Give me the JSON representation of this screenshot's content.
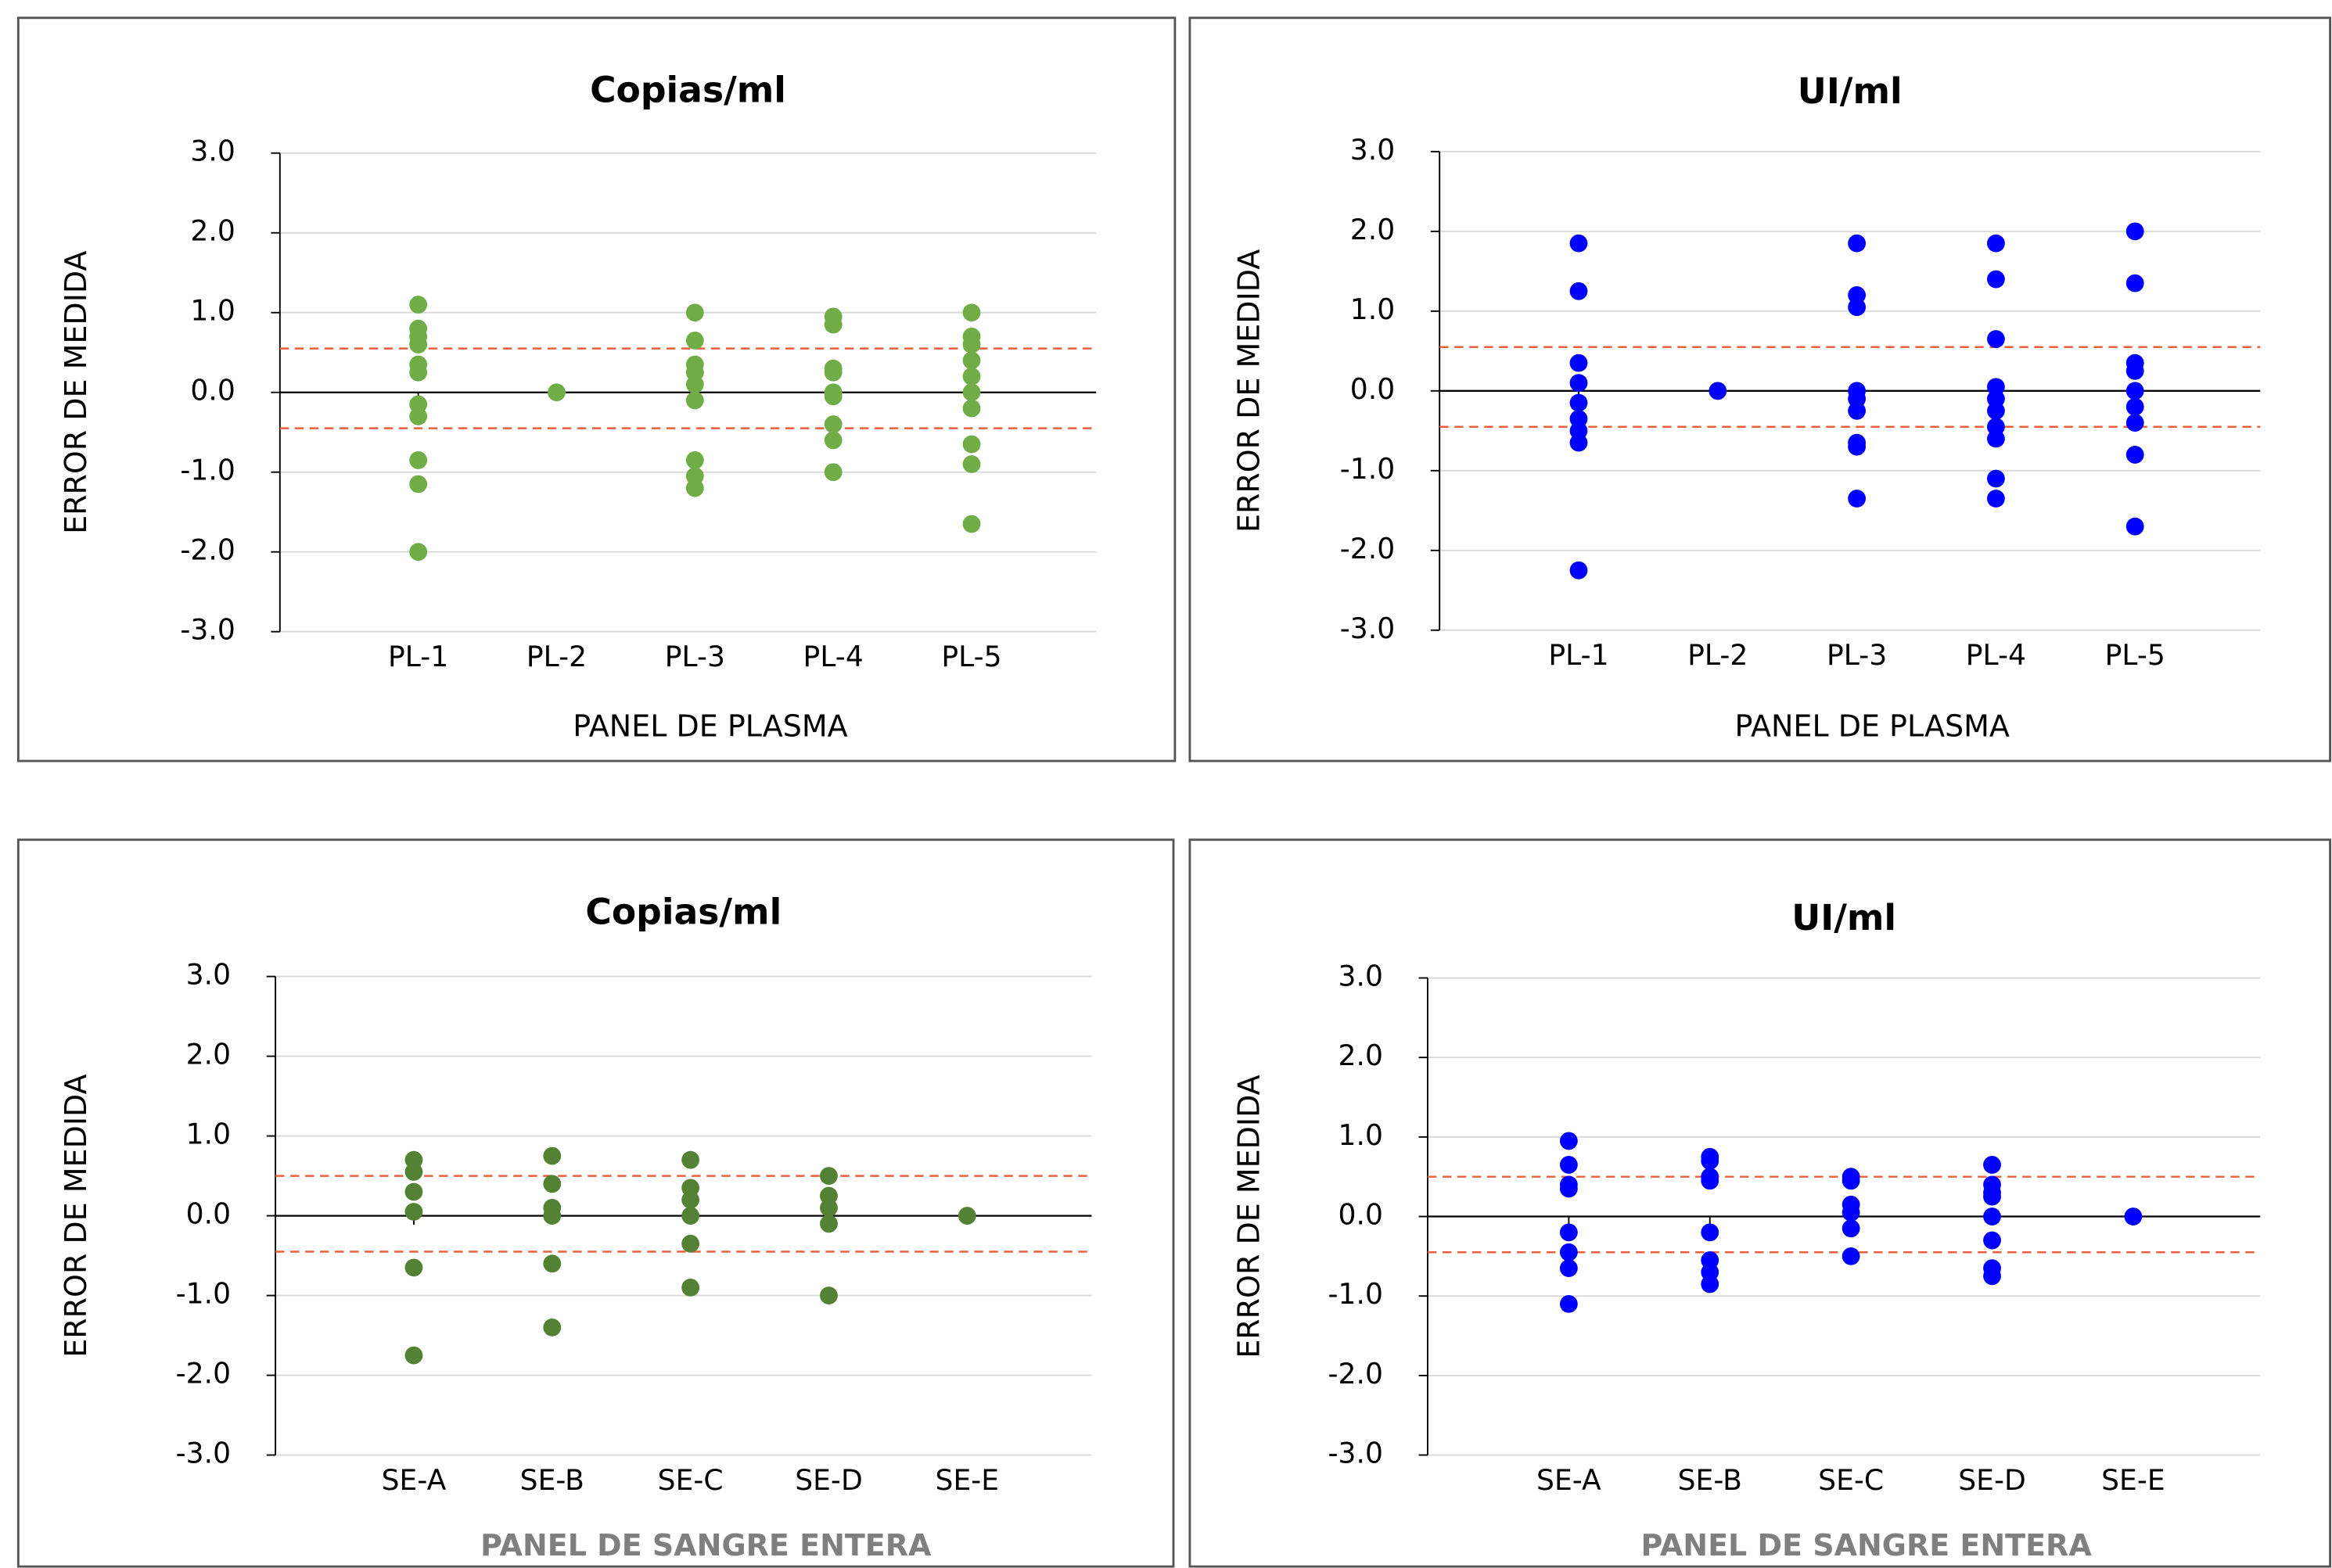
{
  "chart_data": [
    {
      "type": "scatter",
      "title": "Copias/ml",
      "x_label": "PANEL DE PLASMA",
      "y_label": "ERROR DE MEDIDA",
      "categories": [
        "PL-1",
        "PL-2",
        "PL-3",
        "PL-4",
        "PL-5"
      ],
      "values": [
        [
          1.1,
          0.8,
          0.7,
          0.6,
          0.35,
          0.25,
          -0.15,
          -0.3,
          -0.85,
          -1.15,
          -2.0
        ],
        [
          0.0
        ],
        [
          1.0,
          0.65,
          0.35,
          0.25,
          0.1,
          -0.1,
          -0.85,
          -1.05,
          -1.2
        ],
        [
          0.95,
          0.85,
          0.3,
          0.25,
          0.0,
          -0.05,
          -0.4,
          -0.6,
          -1.0
        ],
        [
          1.0,
          0.7,
          0.6,
          0.4,
          0.2,
          0.0,
          -0.2,
          -0.65,
          -0.9,
          -1.65
        ]
      ],
      "color": "#70ad47",
      "ylim": [
        -3,
        3
      ],
      "yticks": [
        {
          "value": -3,
          "label": "-3.0"
        },
        {
          "value": -2,
          "label": "-2.0"
        },
        {
          "value": -1,
          "label": "-1.0"
        },
        {
          "value": 0,
          "label": "0.0"
        },
        {
          "value": 1,
          "label": "1.0"
        },
        {
          "value": 2,
          "label": "2.0"
        },
        {
          "value": 3,
          "label": "3.0"
        }
      ],
      "grid": true,
      "reference_lines": [
        0.55,
        -0.45
      ],
      "reference_color": "#e8603c"
    },
    {
      "type": "scatter",
      "title": "UI/ml",
      "x_label": "PANEL DE PLASMA",
      "y_label": "ERROR DE MEDIDA",
      "categories": [
        "PL-1",
        "PL-2",
        "PL-3",
        "PL-4",
        "PL-5"
      ],
      "values": [
        [
          1.85,
          1.25,
          0.35,
          0.1,
          -0.15,
          -0.35,
          -0.5,
          -0.65,
          -2.25
        ],
        [
          0.0
        ],
        [
          1.85,
          1.2,
          1.05,
          0.0,
          -0.1,
          -0.25,
          -0.65,
          -0.7,
          -1.35
        ],
        [
          1.85,
          1.4,
          0.65,
          0.05,
          -0.1,
          -0.25,
          -0.45,
          -0.6,
          -1.1,
          -1.35
        ],
        [
          2.0,
          1.35,
          0.35,
          0.25,
          0.0,
          -0.2,
          -0.4,
          -0.8,
          -1.7
        ]
      ],
      "color": "#0000ff",
      "ylim": [
        -3,
        3
      ],
      "yticks": [
        {
          "value": -3,
          "label": "-3.0"
        },
        {
          "value": -2,
          "label": "-2.0"
        },
        {
          "value": -1,
          "label": "-1.0"
        },
        {
          "value": 0,
          "label": "0.0"
        },
        {
          "value": 1,
          "label": "1.0"
        },
        {
          "value": 2,
          "label": "2.0"
        },
        {
          "value": 3,
          "label": "3.0"
        }
      ],
      "grid": true,
      "reference_lines": [
        0.55,
        -0.45
      ],
      "reference_color": "#e8603c"
    },
    {
      "type": "scatter",
      "title": "Copias/ml",
      "x_label": "PANEL DE SANGRE ENTERA",
      "y_label": "ERROR DE MEDIDA",
      "categories": [
        "SE-A",
        "SE-B",
        "SE-C",
        "SE-D",
        "SE-E"
      ],
      "values": [
        [
          0.7,
          0.55,
          0.3,
          0.05,
          -0.65,
          -1.75
        ],
        [
          0.75,
          0.4,
          0.1,
          0.0,
          -0.6,
          -1.4
        ],
        [
          0.7,
          0.35,
          0.2,
          0.0,
          -0.35,
          -0.9
        ],
        [
          0.5,
          0.25,
          0.1,
          -0.1,
          -1.0
        ],
        [
          0.0
        ]
      ],
      "color": "#548235",
      "ylim": [
        -3,
        3
      ],
      "yticks": [
        {
          "value": -3,
          "label": "-3.0"
        },
        {
          "value": -2,
          "label": "-2.0"
        },
        {
          "value": -1,
          "label": "-1.0"
        },
        {
          "value": 0,
          "label": "0.0"
        },
        {
          "value": 1,
          "label": "1.0"
        },
        {
          "value": 2,
          "label": "2.0"
        },
        {
          "value": 3,
          "label": "3.0"
        }
      ],
      "grid": true,
      "reference_lines": [
        0.5,
        -0.45
      ],
      "reference_color": "#e8603c"
    },
    {
      "type": "scatter",
      "title": "UI/ml",
      "x_label": "PANEL DE SANGRE ENTERA",
      "y_label": "ERROR DE MEDIDA",
      "categories": [
        "SE-A",
        "SE-B",
        "SE-C",
        "SE-D",
        "SE-E"
      ],
      "values": [
        [
          0.95,
          0.65,
          0.4,
          0.35,
          -0.2,
          -0.45,
          -0.65,
          -1.1
        ],
        [
          0.75,
          0.7,
          0.5,
          0.45,
          -0.2,
          -0.55,
          -0.7,
          -0.85
        ],
        [
          0.5,
          0.45,
          0.15,
          0.05,
          -0.15,
          -0.5
        ],
        [
          0.65,
          0.4,
          0.3,
          0.25,
          0.0,
          -0.3,
          -0.65,
          -0.75
        ],
        [
          0.0
        ]
      ],
      "color": "#0000ff",
      "ylim": [
        -3,
        3
      ],
      "yticks": [
        {
          "value": -3,
          "label": "-3.0"
        },
        {
          "value": -2,
          "label": "-2.0"
        },
        {
          "value": -1,
          "label": "-1.0"
        },
        {
          "value": 0,
          "label": "0.0"
        },
        {
          "value": 1,
          "label": "1.0"
        },
        {
          "value": 2,
          "label": "2.0"
        },
        {
          "value": 3,
          "label": "3.0"
        }
      ],
      "grid": true,
      "reference_lines": [
        0.5,
        -0.45
      ],
      "reference_color": "#e8603c"
    }
  ]
}
